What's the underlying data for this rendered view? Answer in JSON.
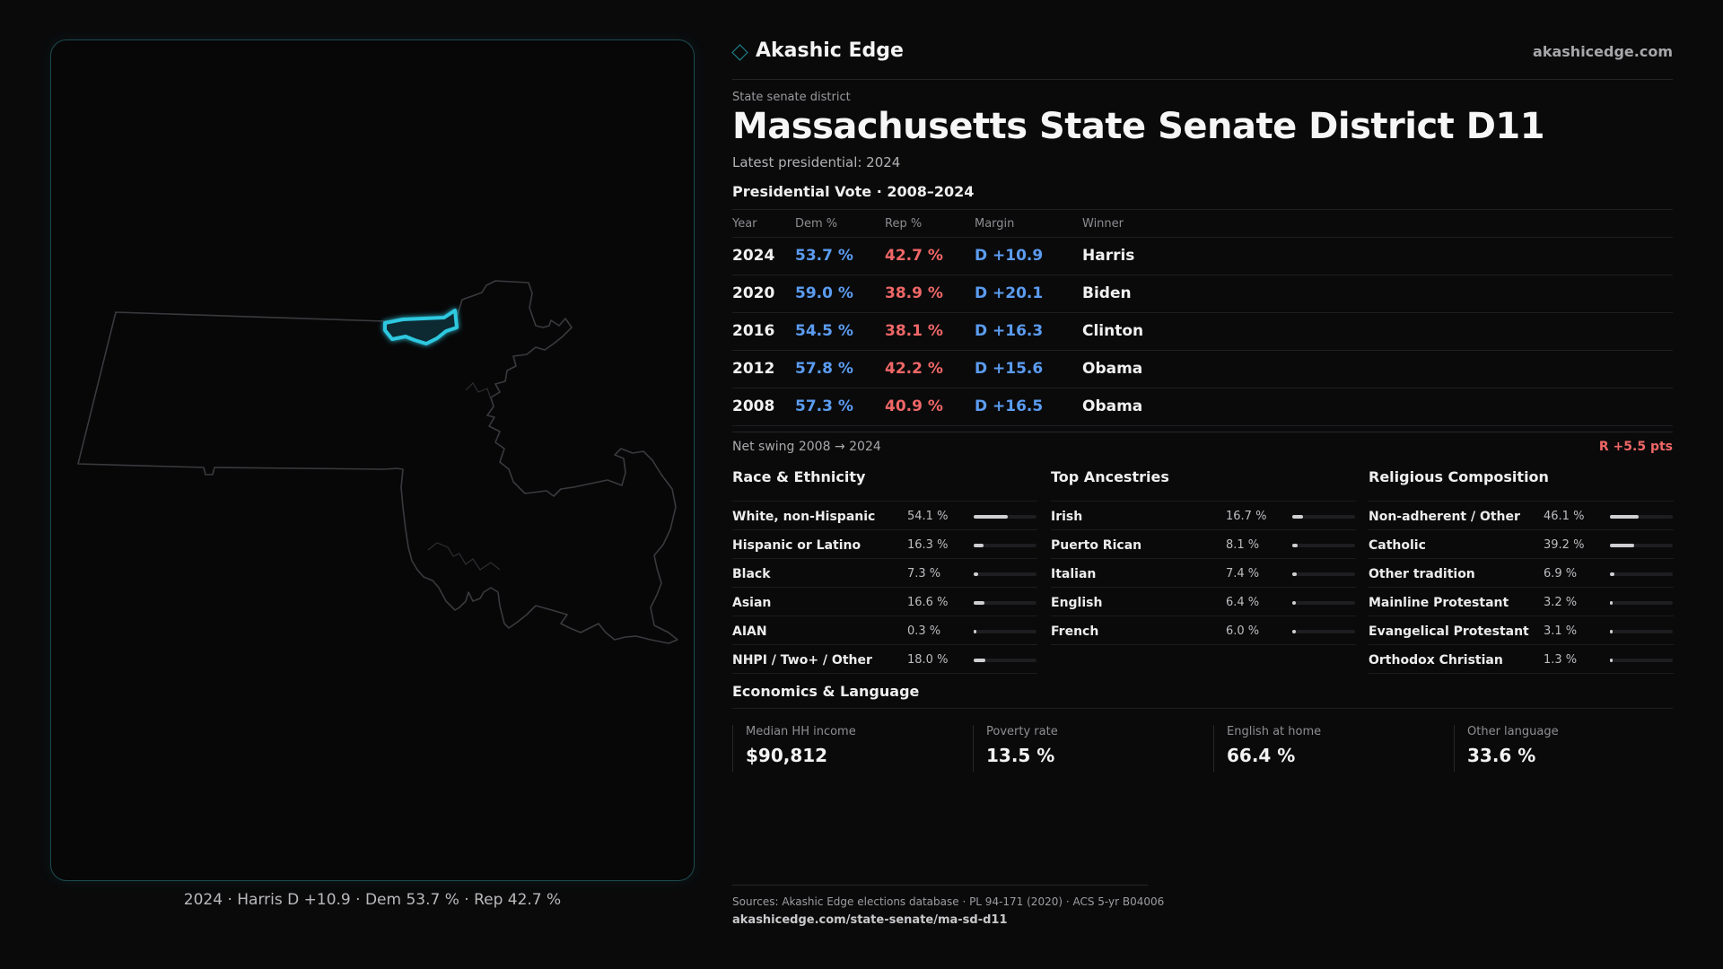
{
  "brand": {
    "name": "Akashic Edge",
    "url": "akashicedge.com"
  },
  "header": {
    "eyebrow": "State senate district",
    "title": "Massachusetts State Senate District D11",
    "subtitle": "Latest presidential: 2024"
  },
  "vote": {
    "title": "Presidential Vote · 2008–2024",
    "columns": [
      "Year",
      "Dem %",
      "Rep %",
      "Margin",
      "Winner"
    ],
    "rows": [
      {
        "year": "2024",
        "dem": "53.7 %",
        "rep": "42.7 %",
        "margin": "D +10.9",
        "winner": "Harris"
      },
      {
        "year": "2020",
        "dem": "59.0 %",
        "rep": "38.9 %",
        "margin": "D +20.1",
        "winner": "Biden"
      },
      {
        "year": "2016",
        "dem": "54.5 %",
        "rep": "38.1 %",
        "margin": "D +16.3",
        "winner": "Clinton"
      },
      {
        "year": "2012",
        "dem": "57.8 %",
        "rep": "42.2 %",
        "margin": "D +15.6",
        "winner": "Obama"
      },
      {
        "year": "2008",
        "dem": "57.3 %",
        "rep": "40.9 %",
        "margin": "D +16.5",
        "winner": "Obama"
      }
    ],
    "swing_label": "Net swing 2008 → 2024",
    "swing_value": "R +5.5 pts",
    "dem_color": "#5b9cf0",
    "rep_color": "#f06767"
  },
  "race": {
    "title": "Race & Ethnicity",
    "items": [
      {
        "label": "White, non-Hispanic",
        "value": "54.1 %",
        "pct": 54.1
      },
      {
        "label": "Hispanic or Latino",
        "value": "16.3 %",
        "pct": 16.3
      },
      {
        "label": "Black",
        "value": "7.3 %",
        "pct": 7.3
      },
      {
        "label": "Asian",
        "value": "16.6 %",
        "pct": 16.6
      },
      {
        "label": "AIAN",
        "value": "0.3 %",
        "pct": 0.3
      },
      {
        "label": "NHPI / Two+ / Other",
        "value": "18.0 %",
        "pct": 18.0
      }
    ]
  },
  "ancestry": {
    "title": "Top Ancestries",
    "items": [
      {
        "label": "Irish",
        "value": "16.7 %",
        "pct": 16.7
      },
      {
        "label": "Puerto Rican",
        "value": "8.1 %",
        "pct": 8.1
      },
      {
        "label": "Italian",
        "value": "7.4 %",
        "pct": 7.4
      },
      {
        "label": "English",
        "value": "6.4 %",
        "pct": 6.4
      },
      {
        "label": "French",
        "value": "6.0 %",
        "pct": 6.0
      }
    ]
  },
  "religion": {
    "title": "Religious Composition",
    "items": [
      {
        "label": "Non-adherent / Other",
        "value": "46.1 %",
        "pct": 46.1
      },
      {
        "label": "Catholic",
        "value": "39.2 %",
        "pct": 39.2
      },
      {
        "label": "Other tradition",
        "value": "6.9 %",
        "pct": 6.9
      },
      {
        "label": "Mainline Protestant",
        "value": "3.2 %",
        "pct": 3.2
      },
      {
        "label": "Evangelical Protestant",
        "value": "3.1 %",
        "pct": 3.1
      },
      {
        "label": "Orthodox Christian",
        "value": "1.3 %",
        "pct": 1.3
      }
    ]
  },
  "economics": {
    "title": "Economics & Language",
    "items": [
      {
        "label": "Median HH income",
        "value": "$90,812"
      },
      {
        "label": "Poverty rate",
        "value": "13.5 %"
      },
      {
        "label": "English at home",
        "value": "66.4 %"
      },
      {
        "label": "Other language",
        "value": "33.6 %"
      }
    ]
  },
  "map": {
    "caption": "2024 · Harris D +10.9 · Dem 53.7 % · Rep 42.7 %",
    "highlight_color": "#2ec9e0"
  },
  "footer": {
    "sources": "Sources: Akashic Edge elections database · PL 94-171 (2020) · ACS 5-yr B04006",
    "url": "akashicedge.com/state-senate/ma-sd-d11"
  }
}
